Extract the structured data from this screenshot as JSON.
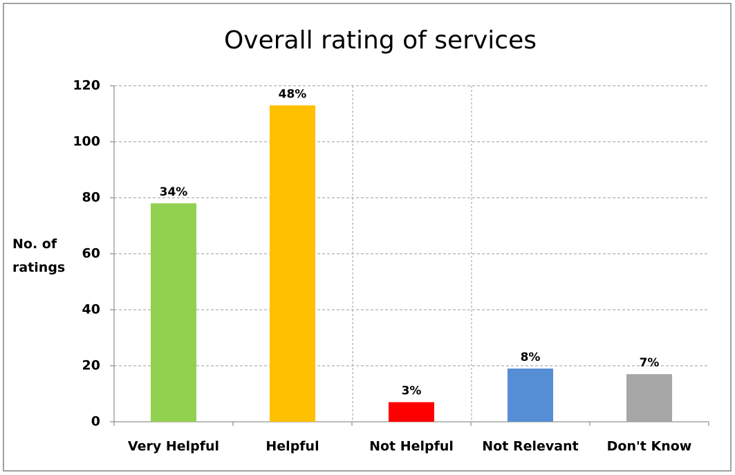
{
  "chart_data": {
    "type": "bar",
    "title": "Overall rating of services",
    "y_label": "No. of ratings",
    "categories": [
      "Very Helpful",
      "Helpful",
      "Not Helpful",
      "Not Relevant",
      "Don't Know"
    ],
    "values": [
      78,
      113,
      7,
      19,
      17
    ],
    "share_labels": [
      "34%",
      "48%",
      "3%",
      "8%",
      "7%"
    ],
    "colors": [
      "#92d050",
      "#ffc000",
      "#ff0000",
      "#558ed5",
      "#a6a6a6"
    ],
    "ylim": [
      0,
      120
    ],
    "yticks": [
      0,
      20,
      40,
      60,
      80,
      100,
      120
    ],
    "grid": true
  }
}
